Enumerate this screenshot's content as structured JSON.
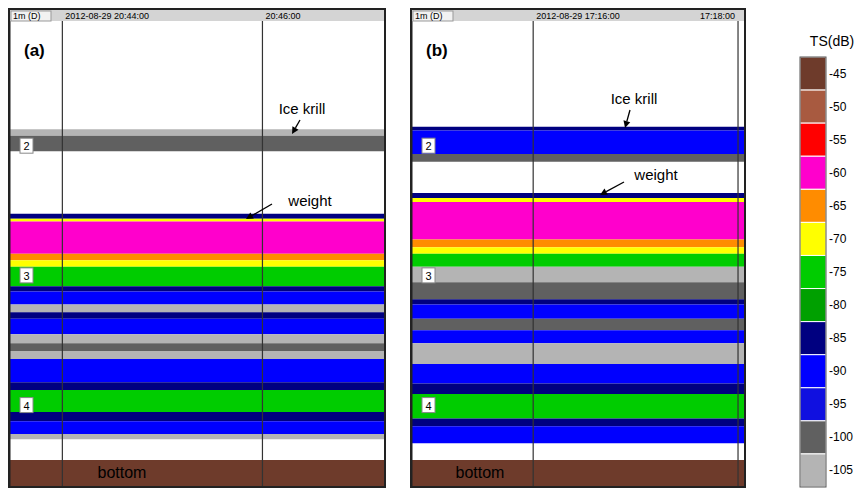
{
  "chart_data": {
    "type": "heatmap",
    "panels": [
      {
        "label": "(a)",
        "header": "1m (D)",
        "times": [
          "2012-08-29 20:44:00",
          "20:46:00"
        ],
        "annotations": [
          "Ice krill",
          "weight",
          "bottom"
        ],
        "ylim": [
          0.95,
          4.62
        ],
        "yticks": [
          2,
          3,
          4
        ],
        "cells": [
          {
            "from": 1.87,
            "to": 1.92,
            "ts": -105
          },
          {
            "from": 1.92,
            "to": 2.04,
            "ts": -100
          },
          {
            "from": 2.52,
            "to": 2.56,
            "ts": -85
          },
          {
            "from": 2.56,
            "to": 2.58,
            "ts": -70
          },
          {
            "from": 2.58,
            "to": 2.83,
            "ts": -60
          },
          {
            "from": 2.83,
            "to": 2.88,
            "ts": -65
          },
          {
            "from": 2.88,
            "to": 2.93,
            "ts": -70
          },
          {
            "from": 2.93,
            "to": 3.08,
            "ts": -75
          },
          {
            "from": 3.08,
            "to": 3.12,
            "ts": -85
          },
          {
            "from": 3.12,
            "to": 3.22,
            "ts": -90
          },
          {
            "from": 3.22,
            "to": 3.28,
            "ts": -105
          },
          {
            "from": 3.28,
            "to": 3.33,
            "ts": -85
          },
          {
            "from": 3.33,
            "to": 3.45,
            "ts": -90
          },
          {
            "from": 3.45,
            "to": 3.52,
            "ts": -105
          },
          {
            "from": 3.52,
            "to": 3.58,
            "ts": -100
          },
          {
            "from": 3.58,
            "to": 3.64,
            "ts": -105
          },
          {
            "from": 3.64,
            "to": 3.82,
            "ts": -90
          },
          {
            "from": 3.82,
            "to": 3.88,
            "ts": -85
          },
          {
            "from": 3.88,
            "to": 4.05,
            "ts": -75
          },
          {
            "from": 4.05,
            "to": 4.12,
            "ts": -85
          },
          {
            "from": 4.12,
            "to": 4.22,
            "ts": -90
          },
          {
            "from": 4.22,
            "to": 4.26,
            "ts": -105
          },
          {
            "from": 4.42,
            "to": 4.62,
            "ts": -45
          }
        ]
      },
      {
        "label": "(b)",
        "header": "1m (D)",
        "times": [
          "2012-08-29 17:16:00",
          "17:18:00"
        ],
        "annotations": [
          "Ice krill",
          "weight",
          "bottom"
        ],
        "ylim": [
          0.95,
          4.62
        ],
        "yticks": [
          2,
          3,
          4
        ],
        "cells": [
          {
            "from": 1.85,
            "to": 1.88,
            "ts": -85
          },
          {
            "from": 1.88,
            "to": 2.06,
            "ts": -90
          },
          {
            "from": 2.06,
            "to": 2.12,
            "ts": -100
          },
          {
            "from": 2.36,
            "to": 2.4,
            "ts": -85
          },
          {
            "from": 2.4,
            "to": 2.43,
            "ts": -70
          },
          {
            "from": 2.43,
            "to": 2.72,
            "ts": -60
          },
          {
            "from": 2.72,
            "to": 2.78,
            "ts": -65
          },
          {
            "from": 2.78,
            "to": 2.83,
            "ts": -70
          },
          {
            "from": 2.83,
            "to": 2.93,
            "ts": -75
          },
          {
            "from": 2.93,
            "to": 3.05,
            "ts": -105
          },
          {
            "from": 3.05,
            "to": 3.18,
            "ts": -100
          },
          {
            "from": 3.18,
            "to": 3.22,
            "ts": -85
          },
          {
            "from": 3.22,
            "to": 3.33,
            "ts": -90
          },
          {
            "from": 3.33,
            "to": 3.42,
            "ts": -100
          },
          {
            "from": 3.42,
            "to": 3.52,
            "ts": -90
          },
          {
            "from": 3.52,
            "to": 3.68,
            "ts": -105
          },
          {
            "from": 3.68,
            "to": 3.83,
            "ts": -90
          },
          {
            "from": 3.83,
            "to": 3.91,
            "ts": -85
          },
          {
            "from": 3.91,
            "to": 4.1,
            "ts": -75
          },
          {
            "from": 4.1,
            "to": 4.16,
            "ts": -85
          },
          {
            "from": 4.16,
            "to": 4.29,
            "ts": -90
          },
          {
            "from": 4.42,
            "to": 4.62,
            "ts": -45
          }
        ]
      }
    ],
    "colorbar": {
      "label": "TS(dB)",
      "lim": [
        -107.5,
        -42.5
      ],
      "ticks": [
        -45,
        -50,
        -55,
        -60,
        -65,
        -70,
        -75,
        -80,
        -85,
        -90,
        -95,
        -100,
        -105
      ],
      "colors": [
        "#6e3b2b",
        "#a85a40",
        "#ff0000",
        "#ff00cc",
        "#ff8c00",
        "#ffff00",
        "#00cc00",
        "#00a000",
        "#000080",
        "#0000ff",
        "#1010e0",
        "#606060",
        "#b4b4b4"
      ]
    }
  }
}
